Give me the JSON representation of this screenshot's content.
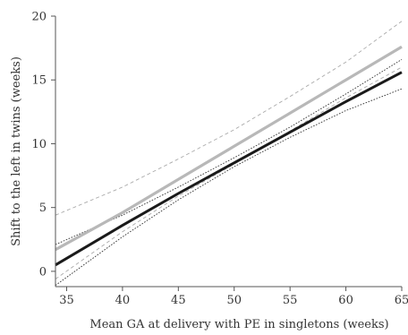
{
  "chart_data": {
    "type": "line",
    "title": "",
    "xlabel": "Mean GA at delivery with PE in singletons (weeks)",
    "ylabel": "Shift to the left in twins (weeks)",
    "xlim": [
      34,
      65
    ],
    "ylim": [
      -1.2,
      20
    ],
    "xticks": [
      35,
      40,
      45,
      50,
      55,
      60,
      65
    ],
    "yticks": [
      0,
      5,
      10,
      15,
      20
    ],
    "grid": false,
    "legend": "none",
    "series": [
      {
        "style": "thick-black",
        "color": "#1a1a1a",
        "x": [
          34,
          40,
          45,
          50,
          55,
          60,
          65
        ],
        "y": [
          0.5,
          3.6,
          6.1,
          8.5,
          10.9,
          13.3,
          15.6
        ]
      },
      {
        "style": "thick-gray",
        "color": "#b8b8b8",
        "x": [
          34,
          40,
          45,
          50,
          55,
          60,
          65
        ],
        "y": [
          1.7,
          4.6,
          7.2,
          9.8,
          12.4,
          15.0,
          17.6
        ]
      },
      {
        "style": "dotted-black",
        "color": "#333333",
        "x": [
          34,
          40,
          45,
          50,
          55,
          60,
          65
        ],
        "y": [
          2.1,
          4.4,
          6.6,
          8.9,
          11.3,
          13.9,
          16.6
        ]
      },
      {
        "style": "dotted-black",
        "color": "#333333",
        "x": [
          34,
          40,
          45,
          50,
          55,
          60,
          65
        ],
        "y": [
          -1.1,
          2.7,
          5.6,
          8.2,
          10.5,
          12.6,
          14.3
        ]
      },
      {
        "style": "dashed-gray",
        "color": "#aaaaaa",
        "x": [
          34,
          40,
          45,
          50,
          55,
          60,
          65
        ],
        "y": [
          4.4,
          6.6,
          8.8,
          11.1,
          13.7,
          16.4,
          19.6
        ]
      },
      {
        "style": "dashed-gray",
        "color": "#aaaaaa",
        "x": [
          34,
          40,
          45,
          50,
          55,
          60,
          65
        ],
        "y": [
          -0.6,
          3.1,
          5.9,
          8.4,
          11.0,
          13.6,
          16.0
        ]
      }
    ]
  }
}
